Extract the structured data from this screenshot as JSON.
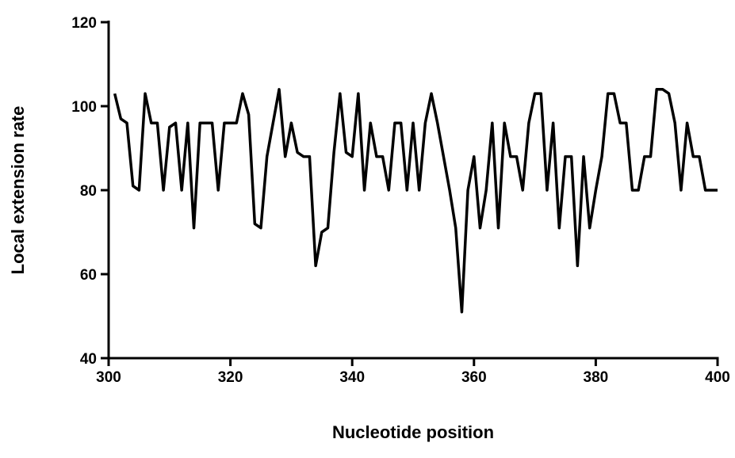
{
  "chart_data": {
    "type": "line",
    "x_label": "Nucleotide position",
    "y_label": "Local extension rate",
    "xlim": [
      300,
      400
    ],
    "xticks": [
      300,
      320,
      340,
      360,
      380,
      400
    ],
    "ylim": [
      40,
      120
    ],
    "yticks": [
      40,
      60,
      80,
      100,
      120
    ],
    "series": [
      {
        "color": "#000000",
        "x": [
          301,
          302,
          303,
          304,
          305,
          306,
          307,
          308,
          309,
          310,
          311,
          312,
          313,
          314,
          315,
          316,
          317,
          318,
          319,
          320,
          321,
          322,
          323,
          324,
          325,
          326,
          327,
          328,
          329,
          330,
          331,
          332,
          333,
          334,
          335,
          336,
          337,
          338,
          339,
          340,
          341,
          342,
          343,
          344,
          345,
          346,
          347,
          348,
          349,
          350,
          351,
          352,
          353,
          354,
          355,
          356,
          357,
          358,
          359,
          360,
          361,
          362,
          363,
          364,
          365,
          366,
          367,
          368,
          369,
          370,
          371,
          372,
          373,
          374,
          375,
          376,
          377,
          378,
          379,
          380,
          381,
          382,
          383,
          384,
          385,
          386,
          387,
          388,
          389,
          390,
          391,
          392,
          393,
          394,
          395,
          396,
          397,
          398,
          399,
          400
        ],
        "values": [
          103,
          97,
          96,
          81,
          80,
          103,
          96,
          96,
          80,
          95,
          96,
          80,
          96,
          71,
          96,
          96,
          96,
          80,
          96,
          96,
          96,
          103,
          98,
          72,
          71,
          88,
          96,
          104,
          88,
          96,
          89,
          88,
          88,
          62,
          70,
          71,
          89,
          103,
          89,
          88,
          103,
          80,
          96,
          88,
          88,
          80,
          96,
          96,
          80,
          96,
          80,
          96,
          103,
          96,
          88,
          80,
          71,
          51,
          80,
          88,
          71,
          80,
          96,
          71,
          96,
          88,
          88,
          80,
          96,
          103,
          103,
          80,
          96,
          71,
          88,
          88,
          62,
          88,
          71,
          80,
          88,
          103,
          103,
          96,
          96,
          80,
          80,
          88,
          88,
          104,
          104,
          103,
          96,
          80,
          96,
          88,
          88,
          80,
          80,
          80
        ]
      }
    ]
  }
}
